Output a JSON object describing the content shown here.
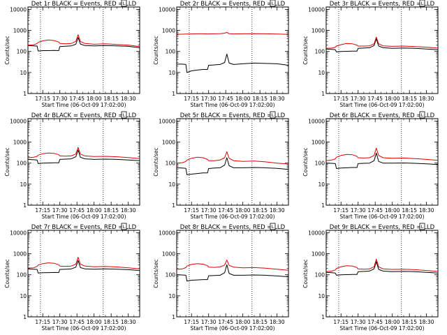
{
  "colors": {
    "events": "#000000",
    "lld": "#e00000",
    "axis": "#000000"
  },
  "shared": {
    "ylabel": "Counts/sec",
    "xlabel": "Start Time (06-Oct-09 17:02:00)",
    "x_ticks": [
      "17:15",
      "17:30",
      "17:45",
      "18:00",
      "18:15",
      "18:30"
    ],
    "y_ticks": [
      "1",
      "10",
      "100",
      "1000",
      "10000"
    ],
    "xlim": [
      "17:02",
      "18:40"
    ],
    "ylim": [
      1,
      13000
    ],
    "yscale": "log",
    "vlines": [
      "17:13",
      "18:08"
    ]
  },
  "chart_data": [
    {
      "type": "line",
      "title": "Det 1r BLACK = Events, RED = LLD",
      "marker": "L",
      "x": [
        "17:02",
        "17:07",
        "17:10",
        "17:11",
        "17:15",
        "17:20",
        "17:25",
        "17:29",
        "17:30",
        "17:35",
        "17:40",
        "17:44",
        "17:46",
        "17:48",
        "17:52",
        "18:00",
        "18:10",
        "18:20",
        "18:30",
        "18:40"
      ],
      "series": [
        {
          "name": "Events",
          "values": [
            190,
            185,
            180,
            105,
            110,
            110,
            112,
            110,
            170,
            178,
            185,
            220,
            460,
            225,
            190,
            185,
            190,
            185,
            175,
            150
          ]
        },
        {
          "name": "LLD",
          "values": [
            200,
            205,
            240,
            270,
            320,
            350,
            330,
            280,
            240,
            230,
            240,
            300,
            620,
            300,
            240,
            220,
            230,
            215,
            200,
            170
          ]
        }
      ]
    },
    {
      "type": "line",
      "title": "Det 2r BLACK = Events, RED = LLD",
      "marker": "L",
      "x": [
        "17:02",
        "17:07",
        "17:10",
        "17:11",
        "17:15",
        "17:20",
        "17:25",
        "17:29",
        "17:30",
        "17:35",
        "17:40",
        "17:44",
        "17:46",
        "17:48",
        "17:52",
        "18:00",
        "18:10",
        "18:20",
        "18:30",
        "18:40"
      ],
      "series": [
        {
          "name": "Events",
          "values": [
            25,
            25,
            24,
            10,
            12,
            13,
            14,
            14,
            22,
            23,
            24,
            30,
            75,
            28,
            24,
            26,
            28,
            27,
            26,
            22
          ]
        },
        {
          "name": "LLD",
          "values": [
            650,
            660,
            670,
            670,
            680,
            690,
            690,
            680,
            680,
            690,
            700,
            740,
            800,
            700,
            680,
            690,
            700,
            690,
            670,
            650
          ]
        }
      ]
    },
    {
      "type": "line",
      "title": "Det 3r BLACK = Events, RED = LLD",
      "marker": "L",
      "x": [
        "17:02",
        "17:07",
        "17:10",
        "17:11",
        "17:15",
        "17:20",
        "17:25",
        "17:29",
        "17:30",
        "17:35",
        "17:40",
        "17:44",
        "17:46",
        "17:48",
        "17:52",
        "18:00",
        "18:10",
        "18:20",
        "18:30",
        "18:40"
      ],
      "series": [
        {
          "name": "Events",
          "values": [
            130,
            125,
            120,
            95,
            100,
            102,
            104,
            103,
            140,
            145,
            150,
            190,
            400,
            180,
            150,
            140,
            145,
            140,
            130,
            120
          ]
        },
        {
          "name": "LLD",
          "values": [
            140,
            145,
            160,
            180,
            210,
            240,
            230,
            200,
            180,
            180,
            185,
            230,
            480,
            230,
            185,
            175,
            180,
            170,
            160,
            145
          ]
        }
      ]
    },
    {
      "type": "line",
      "title": "Det 4r BLACK = Events, RED = LLD",
      "marker": "L",
      "x": [
        "17:02",
        "17:07",
        "17:10",
        "17:11",
        "17:15",
        "17:20",
        "17:25",
        "17:29",
        "17:30",
        "17:35",
        "17:40",
        "17:44",
        "17:46",
        "17:48",
        "17:52",
        "18:00",
        "18:10",
        "18:20",
        "18:30",
        "18:40"
      ],
      "series": [
        {
          "name": "Events",
          "values": [
            150,
            145,
            140,
            95,
            100,
            102,
            104,
            103,
            150,
            155,
            160,
            200,
            420,
            190,
            160,
            150,
            155,
            150,
            140,
            130
          ]
        },
        {
          "name": "LLD",
          "values": [
            180,
            190,
            210,
            240,
            280,
            300,
            290,
            250,
            220,
            215,
            220,
            270,
            560,
            270,
            220,
            205,
            210,
            200,
            185,
            165
          ]
        }
      ]
    },
    {
      "type": "line",
      "title": "Det 5r BLACK = Events, RED = LLD",
      "marker": "L",
      "x": [
        "17:02",
        "17:07",
        "17:10",
        "17:11",
        "17:15",
        "17:20",
        "17:25",
        "17:29",
        "17:30",
        "17:35",
        "17:40",
        "17:44",
        "17:46",
        "17:48",
        "17:52",
        "18:00",
        "18:10",
        "18:20",
        "18:30",
        "18:40"
      ],
      "series": [
        {
          "name": "Events",
          "values": [
            60,
            58,
            56,
            28,
            30,
            32,
            34,
            34,
            55,
            58,
            60,
            80,
            180,
            75,
            60,
            60,
            62,
            60,
            56,
            50
          ]
        },
        {
          "name": "LLD",
          "values": [
            100,
            105,
            120,
            140,
            170,
            190,
            180,
            150,
            130,
            130,
            140,
            180,
            350,
            170,
            130,
            120,
            125,
            115,
            100,
            90
          ]
        }
      ]
    },
    {
      "type": "line",
      "title": "Det 6r BLACK = Events, RED = LLD",
      "marker": "L",
      "x": [
        "17:02",
        "17:07",
        "17:10",
        "17:11",
        "17:15",
        "17:20",
        "17:25",
        "17:29",
        "17:30",
        "17:35",
        "17:40",
        "17:44",
        "17:46",
        "17:48",
        "17:52",
        "18:00",
        "18:10",
        "18:20",
        "18:30",
        "18:40"
      ],
      "series": [
        {
          "name": "Events",
          "values": [
            100,
            98,
            95,
            55,
            58,
            60,
            62,
            62,
            95,
            98,
            100,
            130,
            300,
            120,
            100,
            100,
            102,
            98,
            92,
            85
          ]
        },
        {
          "name": "LLD",
          "values": [
            130,
            140,
            160,
            190,
            230,
            260,
            250,
            210,
            180,
            175,
            180,
            230,
            520,
            230,
            180,
            170,
            175,
            165,
            150,
            135
          ]
        }
      ]
    },
    {
      "type": "line",
      "title": "Det 7r BLACK = Events, RED = LLD",
      "marker": "L",
      "x": [
        "17:02",
        "17:07",
        "17:10",
        "17:11",
        "17:15",
        "17:20",
        "17:25",
        "17:29",
        "17:30",
        "17:35",
        "17:40",
        "17:44",
        "17:46",
        "17:48",
        "17:52",
        "18:00",
        "18:10",
        "18:20",
        "18:30",
        "18:40"
      ],
      "series": [
        {
          "name": "Events",
          "values": [
            190,
            185,
            180,
            120,
            125,
            127,
            129,
            128,
            180,
            185,
            190,
            230,
            480,
            220,
            190,
            185,
            190,
            185,
            175,
            160
          ]
        },
        {
          "name": "LLD",
          "values": [
            210,
            215,
            250,
            290,
            340,
            370,
            350,
            300,
            260,
            250,
            260,
            320,
            680,
            320,
            260,
            240,
            250,
            235,
            215,
            190
          ]
        }
      ]
    },
    {
      "type": "line",
      "title": "Det 8r BLACK = Events, RED = LLD",
      "marker": "L",
      "x": [
        "17:02",
        "17:07",
        "17:10",
        "17:11",
        "17:15",
        "17:20",
        "17:25",
        "17:29",
        "17:30",
        "17:35",
        "17:40",
        "17:44",
        "17:46",
        "17:48",
        "17:52",
        "18:00",
        "18:10",
        "18:20",
        "18:30",
        "18:40"
      ],
      "series": [
        {
          "name": "Events",
          "values": [
            100,
            98,
            95,
            50,
            55,
            57,
            59,
            59,
            90,
            93,
            95,
            125,
            300,
            115,
            95,
            95,
            98,
            95,
            88,
            80
          ]
        },
        {
          "name": "LLD",
          "values": [
            180,
            190,
            220,
            260,
            310,
            340,
            320,
            270,
            230,
            225,
            235,
            290,
            500,
            280,
            230,
            215,
            220,
            205,
            185,
            165
          ]
        }
      ]
    },
    {
      "type": "line",
      "title": "Det 9r BLACK = Events, RED = LLD",
      "marker": "L",
      "x": [
        "17:02",
        "17:07",
        "17:10",
        "17:11",
        "17:15",
        "17:20",
        "17:25",
        "17:29",
        "17:30",
        "17:35",
        "17:40",
        "17:44",
        "17:46",
        "17:48",
        "17:52",
        "18:00",
        "18:10",
        "18:20",
        "18:30",
        "18:40"
      ],
      "series": [
        {
          "name": "Events",
          "values": [
            130,
            125,
            120,
            95,
            100,
            102,
            104,
            103,
            140,
            145,
            150,
            190,
            420,
            180,
            150,
            140,
            145,
            140,
            130,
            120
          ]
        },
        {
          "name": "LLD",
          "values": [
            140,
            150,
            170,
            200,
            240,
            270,
            260,
            220,
            190,
            185,
            190,
            240,
            560,
            240,
            190,
            180,
            185,
            175,
            160,
            145
          ]
        }
      ]
    }
  ]
}
